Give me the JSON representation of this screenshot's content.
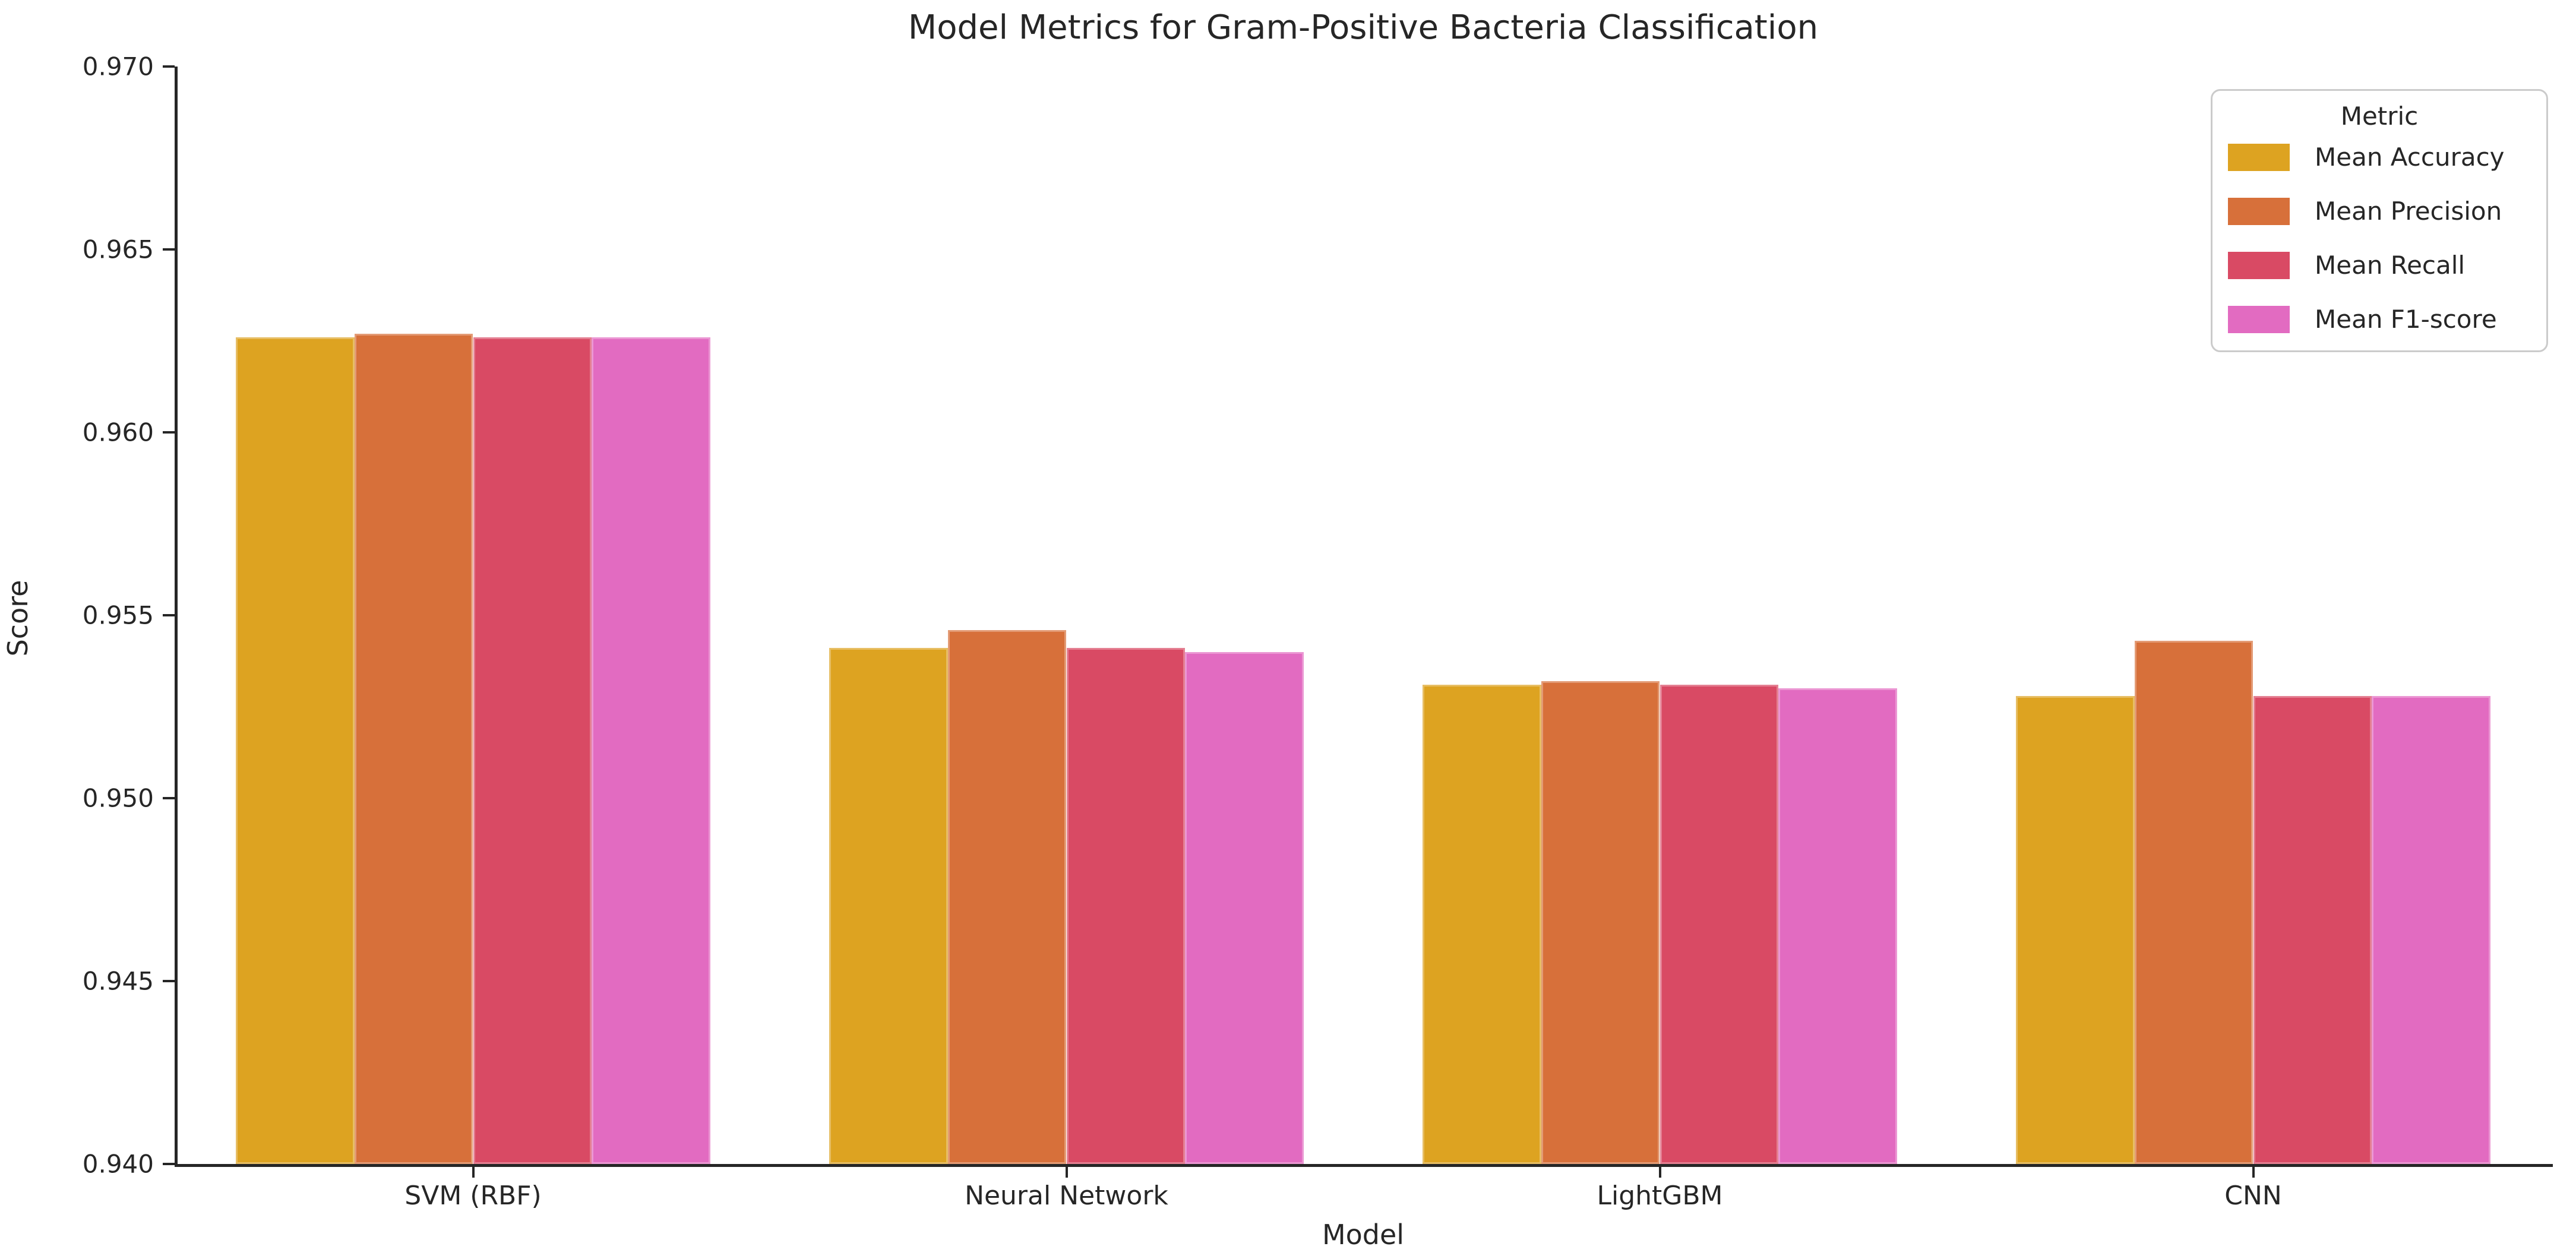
{
  "chart_data": {
    "type": "bar",
    "title": "Model Metrics for Gram-Positive Bacteria Classification",
    "xlabel": "Model",
    "ylabel": "Score",
    "categories": [
      "SVM (RBF)",
      "Neural Network",
      "LightGBM",
      "CNN"
    ],
    "series": [
      {
        "name": "Mean Accuracy",
        "color": "#DDA321",
        "values": [
          0.9626,
          0.9541,
          0.9531,
          0.9528
        ]
      },
      {
        "name": "Mean Precision",
        "color": "#D7703A",
        "values": [
          0.9627,
          0.9546,
          0.9532,
          0.9543
        ]
      },
      {
        "name": "Mean Recall",
        "color": "#D94A64",
        "values": [
          0.9626,
          0.9541,
          0.9531,
          0.9528
        ]
      },
      {
        "name": "Mean F1-score",
        "color": "#E26BC1",
        "values": [
          0.9626,
          0.954,
          0.953,
          0.9528
        ]
      }
    ],
    "ylim": [
      0.94,
      0.97
    ],
    "ytick_labels": [
      "0.940",
      "0.945",
      "0.950",
      "0.955",
      "0.960",
      "0.965",
      "0.970"
    ],
    "grid": false,
    "legend": {
      "title": "Metric",
      "position": "upper right"
    },
    "axis_color": "#262626",
    "text_color": "#262626"
  }
}
